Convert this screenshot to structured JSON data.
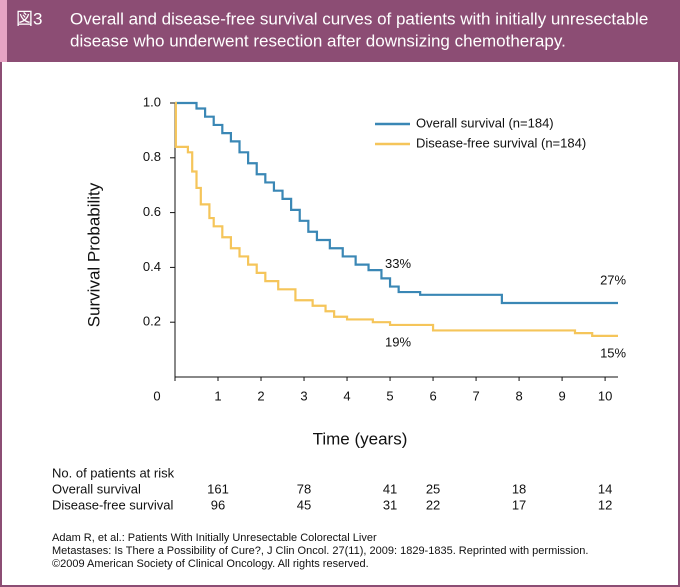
{
  "header": {
    "figure_label": "図3",
    "title_lines": [
      "Overall and disease-free survival curves of patients with initially unresectable",
      "disease who underwent resection after downsizing chemotherapy."
    ]
  },
  "chart_data": {
    "type": "line",
    "step": true,
    "x_label": "Time (years)",
    "y_label": "Survival Probability",
    "xlim": [
      0,
      10.3
    ],
    "ylim": [
      0,
      1
    ],
    "xticks": [
      0,
      1,
      2,
      3,
      4,
      5,
      6,
      7,
      8,
      9,
      10
    ],
    "yticks": [
      0.2,
      0.4,
      0.6,
      0.8,
      {
        "value": 1,
        "label": "1.0"
      }
    ],
    "legend": "upper right",
    "series": [
      {
        "name": "Overall survival (n=184)",
        "color": "#3a87b5",
        "x": [
          0,
          0.35,
          0.5,
          0.7,
          0.9,
          1.1,
          1.3,
          1.5,
          1.7,
          1.9,
          2.1,
          2.3,
          2.5,
          2.7,
          2.9,
          3.1,
          3.3,
          3.6,
          3.9,
          4.2,
          4.5,
          4.8,
          5.0,
          5.2,
          5.7,
          7.4,
          7.6,
          10.3
        ],
        "values": [
          1.0,
          1.0,
          0.98,
          0.95,
          0.92,
          0.89,
          0.86,
          0.82,
          0.78,
          0.74,
          0.71,
          0.68,
          0.65,
          0.61,
          0.57,
          0.53,
          0.5,
          0.47,
          0.44,
          0.41,
          0.39,
          0.36,
          0.33,
          0.31,
          0.3,
          0.3,
          0.27,
          0.27
        ],
        "annotations": [
          {
            "x": 5,
            "value": 0.33,
            "label": "33%"
          },
          {
            "x": 10,
            "value": 0.27,
            "label": "27%"
          }
        ]
      },
      {
        "name": "Disease-free survival (n=184)",
        "color": "#f5c55a",
        "x": [
          0,
          0.02,
          0.3,
          0.4,
          0.5,
          0.6,
          0.8,
          0.9,
          1.1,
          1.3,
          1.5,
          1.7,
          1.9,
          2.1,
          2.4,
          2.8,
          3.2,
          3.5,
          3.7,
          4.0,
          4.6,
          5.0,
          6.0,
          9.3,
          9.7,
          10.3
        ],
        "values": [
          1.0,
          0.84,
          0.82,
          0.75,
          0.69,
          0.63,
          0.58,
          0.55,
          0.51,
          0.47,
          0.44,
          0.41,
          0.38,
          0.35,
          0.32,
          0.28,
          0.26,
          0.24,
          0.22,
          0.21,
          0.2,
          0.19,
          0.17,
          0.16,
          0.15,
          0.15
        ],
        "annotations": [
          {
            "x": 5,
            "value": 0.19,
            "label": "19%"
          },
          {
            "x": 10,
            "value": 0.15,
            "label": "15%"
          }
        ]
      }
    ]
  },
  "at_risk": {
    "title": "No. of patients at risk",
    "times": [
      1,
      3,
      5,
      6,
      8,
      10
    ],
    "rows": [
      {
        "name": "Overall survival",
        "values": [
          161,
          78,
          41,
          25,
          18,
          14
        ]
      },
      {
        "name": "Disease-free survival",
        "values": [
          96,
          45,
          31,
          22,
          17,
          12
        ]
      }
    ]
  },
  "citation": [
    "Adam R, et al.: Patients With Initially Unresectable Colorectal Liver",
    "Metastases: Is There a Possibility of Cure?, J Clin Oncol. 27(11), 2009: 1829-1835. Reprinted with permission.",
    "©2009 American Society of Clinical Oncology. All rights reserved."
  ]
}
